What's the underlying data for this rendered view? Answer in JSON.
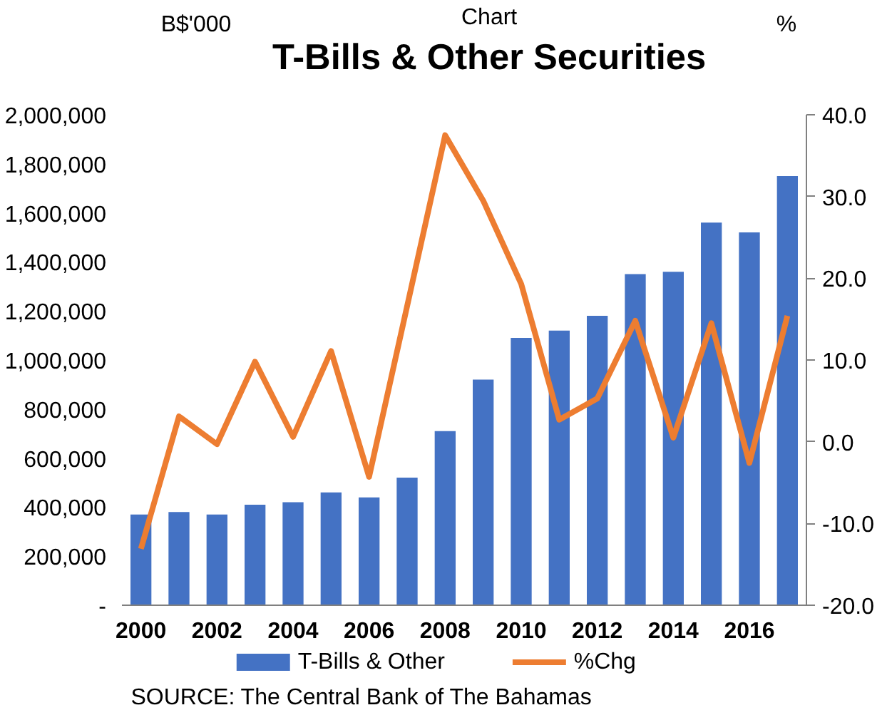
{
  "chart_data": {
    "type": "bar",
    "subtitle": "Chart",
    "title": "T-Bills & Other Securities",
    "ylabel": "B$'000",
    "y2label": "%",
    "categories": [
      "2000",
      null,
      "2002",
      null,
      "2004",
      null,
      "2006",
      null,
      "2008",
      null,
      "2010",
      null,
      "2012",
      null,
      "2014",
      null,
      "2016",
      null
    ],
    "series": [
      {
        "name": "T-Bills & Other",
        "color": "#4472c4",
        "values": [
          370000,
          380000,
          370000,
          410000,
          420000,
          460000,
          440000,
          520000,
          710000,
          920000,
          1090000,
          1120000,
          1180000,
          1350000,
          1360000,
          1560000,
          1520000,
          1750000
        ]
      },
      {
        "name": "%Chg",
        "type": "line",
        "axis": "y2",
        "color": "#ed7d31",
        "values": [
          -13.1,
          3.1,
          -0.3,
          9.8,
          0.6,
          11.1,
          -4.3,
          16.6,
          37.5,
          29.5,
          19.3,
          2.7,
          5.3,
          14.8,
          0.5,
          14.5,
          -2.6,
          15.4
        ]
      }
    ],
    "ylim": [
      0,
      2000000
    ],
    "yticks": [
      {
        "value": 0,
        "label": "-"
      },
      {
        "value": 200000,
        "label": "200,000"
      },
      {
        "value": 400000,
        "label": "400,000"
      },
      {
        "value": 600000,
        "label": "600,000"
      },
      {
        "value": 800000,
        "label": "800,000"
      },
      {
        "value": 1000000,
        "label": "1,000,000"
      },
      {
        "value": 1200000,
        "label": "1,200,000"
      },
      {
        "value": 1400000,
        "label": "1,400,000"
      },
      {
        "value": 1600000,
        "label": "1,600,000"
      },
      {
        "value": 1800000,
        "label": "1,800,000"
      },
      {
        "value": 2000000,
        "label": "2,000,000"
      }
    ],
    "y2lim": [
      -20,
      40
    ],
    "y2ticks": [
      {
        "value": -20,
        "label": "-20.0"
      },
      {
        "value": -10,
        "label": "-10.0"
      },
      {
        "value": 0,
        "label": "0.0"
      },
      {
        "value": 10,
        "label": "10.0"
      },
      {
        "value": 20,
        "label": "20.0"
      },
      {
        "value": 30,
        "label": "30.0"
      },
      {
        "value": 40,
        "label": "40.0"
      }
    ],
    "grid": false,
    "legend": "bottom",
    "line_style": "solid",
    "marker": "none",
    "annotations": [
      "SOURCE: The Central Bank of The Bahamas"
    ]
  }
}
